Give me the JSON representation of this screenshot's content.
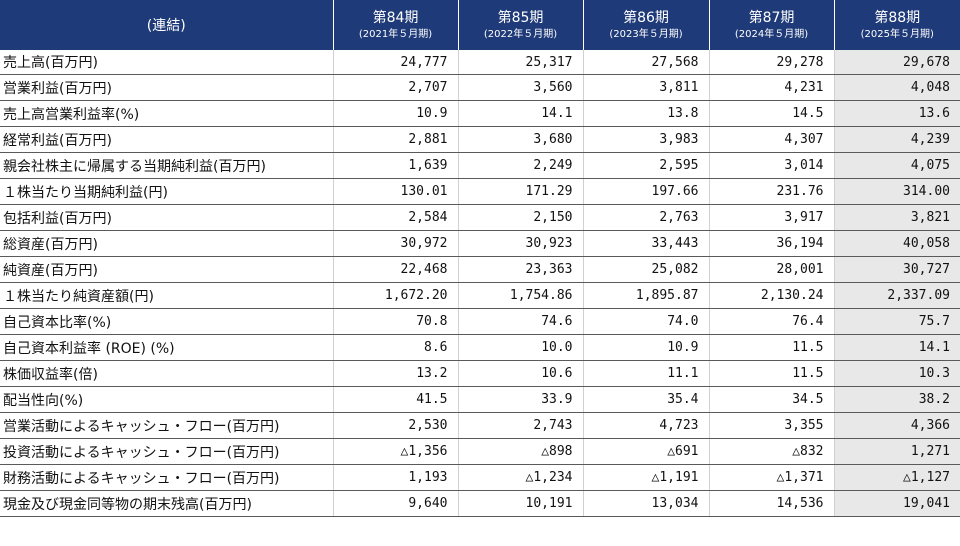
{
  "header": {
    "corner": "(連結)",
    "periods": [
      {
        "title": "第84期",
        "sub": "(2021年５月期)"
      },
      {
        "title": "第85期",
        "sub": "(2022年５月期)"
      },
      {
        "title": "第86期",
        "sub": "(2023年５月期)"
      },
      {
        "title": "第87期",
        "sub": "(2024年５月期)"
      },
      {
        "title": "第88期",
        "sub": "(2025年５月期)"
      }
    ]
  },
  "rows": [
    {
      "label": "売上高(百万円)",
      "values": [
        "24,777",
        "25,317",
        "27,568",
        "29,278",
        "29,678"
      ]
    },
    {
      "label": "営業利益(百万円)",
      "values": [
        "2,707",
        "3,560",
        "3,811",
        "4,231",
        "4,048"
      ]
    },
    {
      "label": "売上高営業利益率(%)",
      "values": [
        "10.9",
        "14.1",
        "13.8",
        "14.5",
        "13.6"
      ]
    },
    {
      "label": "経常利益(百万円)",
      "values": [
        "2,881",
        "3,680",
        "3,983",
        "4,307",
        "4,239"
      ]
    },
    {
      "label": "親会社株主に帰属する当期純利益(百万円)",
      "values": [
        "1,639",
        "2,249",
        "2,595",
        "3,014",
        "4,075"
      ]
    },
    {
      "label": "１株当たり当期純利益(円)",
      "values": [
        "130.01",
        "171.29",
        "197.66",
        "231.76",
        "314.00"
      ]
    },
    {
      "label": "包括利益(百万円)",
      "values": [
        "2,584",
        "2,150",
        "2,763",
        "3,917",
        "3,821"
      ]
    },
    {
      "label": "総資産(百万円)",
      "values": [
        "30,972",
        "30,923",
        "33,443",
        "36,194",
        "40,058"
      ]
    },
    {
      "label": "純資産(百万円)",
      "values": [
        "22,468",
        "23,363",
        "25,082",
        "28,001",
        "30,727"
      ]
    },
    {
      "label": "１株当たり純資産額(円)",
      "values": [
        "1,672.20",
        "1,754.86",
        "1,895.87",
        "2,130.24",
        "2,337.09"
      ]
    },
    {
      "label": "自己資本比率(%)",
      "values": [
        "70.8",
        "74.6",
        "74.0",
        "76.4",
        "75.7"
      ]
    },
    {
      "label": "自己資本利益率 (ROE) (%)",
      "values": [
        "8.6",
        "10.0",
        "10.9",
        "11.5",
        "14.1"
      ]
    },
    {
      "label": "株価収益率(倍)",
      "values": [
        "13.2",
        "10.6",
        "11.1",
        "11.5",
        "10.3"
      ]
    },
    {
      "label": "配当性向(%)",
      "values": [
        "41.5",
        "33.9",
        "35.4",
        "34.5",
        "38.2"
      ]
    },
    {
      "label": "営業活動によるキャッシュ・フロー(百万円)",
      "values": [
        "2,530",
        "2,743",
        "4,723",
        "3,355",
        "4,366"
      ]
    },
    {
      "label": "投資活動によるキャッシュ・フロー(百万円)",
      "values": [
        "△1,356",
        "△898",
        "△691",
        "△832",
        "1,271"
      ]
    },
    {
      "label": "財務活動によるキャッシュ・フロー(百万円)",
      "values": [
        "1,193",
        "△1,234",
        "△1,191",
        "△1,371",
        "△1,127"
      ]
    },
    {
      "label": "現金及び現金同等物の期末残高(百万円)",
      "values": [
        "9,640",
        "10,191",
        "13,034",
        "14,536",
        "19,041"
      ]
    }
  ]
}
